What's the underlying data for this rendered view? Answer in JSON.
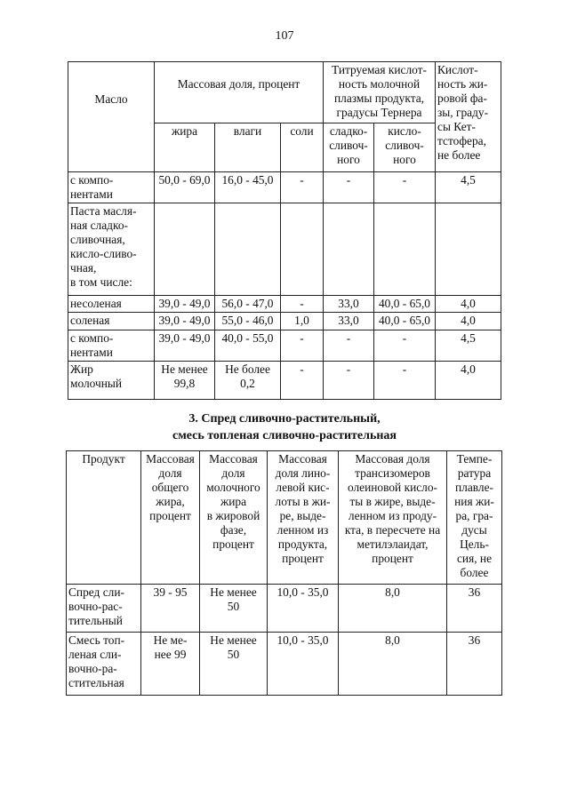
{
  "page_number": "107",
  "table1": {
    "header": {
      "oil": "Масло",
      "mass_fraction": "Массовая доля, процент",
      "titratable_acidity": "Титруемая кислот-\nность молочной\nплазмы продукта,\nградусы Тернера",
      "fat_phase_acidity": "Кислот-\nность жи-\nровой фа-\nзы, граду-\nсы Кет-\nтстофера,\nне более",
      "fat": "жира",
      "moisture": "влаги",
      "salt": "соли",
      "sweet_cream": "сладко-\nсливоч-\nного",
      "sour_cream": "кисло-\nсливоч-\nного"
    },
    "rows": [
      [
        "  с компо-\n  нентами",
        "50,0 - 69,0",
        "16,0 - 45,0",
        "-",
        "-",
        "-",
        "4,5"
      ],
      [
        "Паста масля-\nная сладко-\nсливочная,\nкисло-сливо-\nчная,\nв том числе:",
        "",
        "",
        "",
        "",
        "",
        ""
      ],
      [
        "  несоленая",
        "39,0 - 49,0",
        "56,0 - 47,0",
        "-",
        "33,0",
        "40,0 - 65,0",
        "4,0"
      ],
      [
        "  соленая",
        "39,0 - 49,0",
        "55,0 - 46,0",
        "1,0",
        "33,0",
        "40,0 - 65,0",
        "4,0"
      ],
      [
        "  с компо-\n  нентами",
        "39,0 - 49,0",
        "40,0 - 55,0",
        "-",
        "-",
        "-",
        "4,5"
      ],
      [
        "Жир\nмолочный",
        "Не менее\n99,8",
        "Не более\n0,2",
        "-",
        "-",
        "-",
        "4,0"
      ]
    ]
  },
  "section_heading": {
    "line1": "3. Спред сливочно-растительный,",
    "line2": "смесь топленая сливочно-растительная"
  },
  "table2": {
    "headers": [
      "Продукт",
      "Массовая\nдоля\nобщего\nжира,\nпроцент",
      "Массовая\nдоля\nмолочного\nжира\nв жировой\nфазе,\nпроцент",
      "Массовая\nдоля лино-\nлевой кис-\nлоты в жи-\nре, выде-\nленном из\nпродукта,\nпроцент",
      "Массовая доля\nтрансизомеров\nолеиновой кисло-\nты в жире, выде-\nленном из проду-\nкта, в пересчете на\nметилэлаидат,\nпроцент",
      "Темпе-\nратура\nплавле-\nния жи-\nра, гра-\nдусы\nЦель-\nсия, не\nболее"
    ],
    "rows": [
      [
        "Спред сли-\nвочно-рас-\nтительный",
        "39 - 95",
        "Не менее\n50",
        "10,0 - 35,0",
        "8,0",
        "36"
      ],
      [
        "Смесь топ-\nленая сли-\nвочно-ра-\nстительная",
        "Не ме-\nнее 99",
        "Не менее\n50",
        "10,0 - 35,0",
        "8,0",
        "36"
      ]
    ]
  }
}
